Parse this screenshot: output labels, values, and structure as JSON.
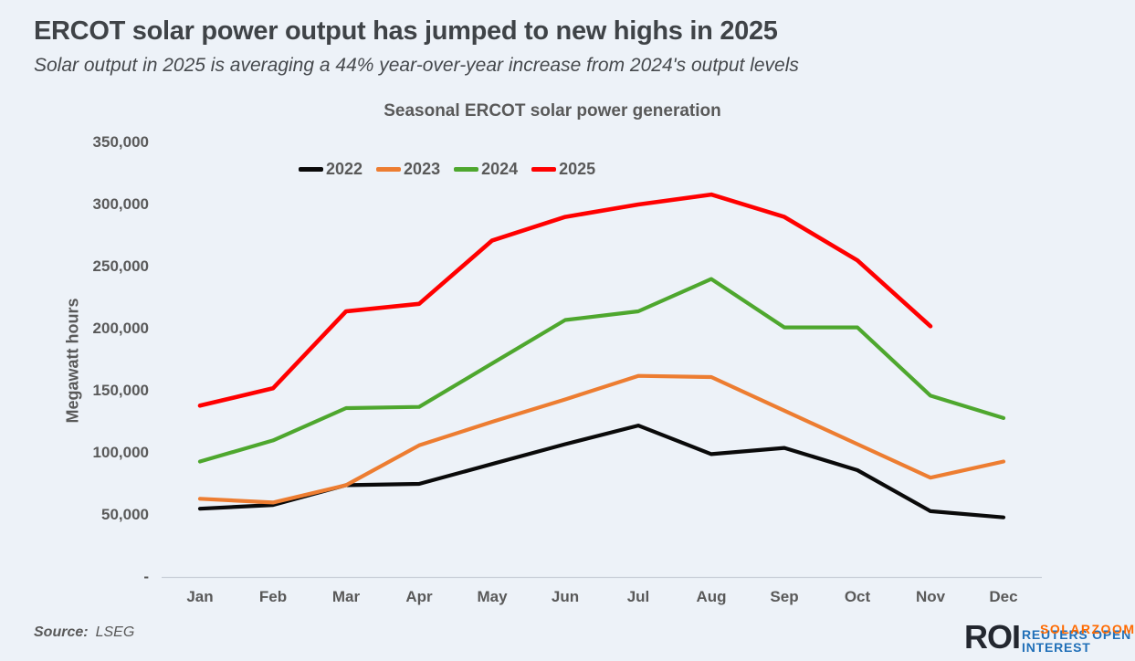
{
  "page": {
    "background": "#EDF2F8"
  },
  "header": {
    "title": "ERCOT solar power output has jumped to new highs in 2025",
    "subtitle": "Solar output in 2025 is averaging a 44% year-over-year increase from 2024's output levels"
  },
  "chart_data": {
    "type": "line",
    "title": "Seasonal ERCOT solar power generation",
    "ylabel": "Megawatt hours",
    "xlabel": "",
    "categories": [
      "Jan",
      "Feb",
      "Mar",
      "Apr",
      "May",
      "Jun",
      "Jul",
      "Aug",
      "Sep",
      "Oct",
      "Nov",
      "Dec"
    ],
    "ylim": [
      0,
      350000
    ],
    "ytick_values": [
      350000,
      300000,
      250000,
      200000,
      150000,
      100000,
      50000,
      0
    ],
    "ytick_labels": [
      "350,000",
      "300,000",
      "250,000",
      "200,000",
      "150,000",
      "100,000",
      "50,000",
      "-"
    ],
    "grid": false,
    "legend_position": "top-center",
    "axis_line_color": "#C9CFD8",
    "series": [
      {
        "name": "2022",
        "color": "#0A0A0A",
        "values": [
          55000,
          58000,
          74000,
          75000,
          91000,
          107000,
          122000,
          99000,
          104000,
          86000,
          53000,
          48000
        ]
      },
      {
        "name": "2023",
        "color": "#ED7D31",
        "values": [
          63000,
          60000,
          74000,
          106000,
          125000,
          143000,
          162000,
          161000,
          134000,
          107000,
          80000,
          93000
        ]
      },
      {
        "name": "2024",
        "color": "#4EA72E",
        "values": [
          93000,
          110000,
          136000,
          137000,
          172000,
          207000,
          214000,
          240000,
          201000,
          201000,
          146000,
          128000
        ]
      },
      {
        "name": "2025",
        "color": "#FF0000",
        "values": [
          138000,
          152000,
          214000,
          220000,
          271000,
          290000,
          300000,
          308000,
          290000,
          255000,
          202000,
          null
        ]
      }
    ]
  },
  "footer": {
    "source_label": "Source:",
    "source_value": "LSEG",
    "logo_text": "ROI",
    "logo_sub_line1": "REUTERS OPEN",
    "logo_sub_line2": "INTEREST",
    "watermark": "SOLARZOOM",
    "logo_color": "#23272F",
    "logo_sub_color": "#2170B8",
    "watermark_color": "#FF6A00"
  }
}
